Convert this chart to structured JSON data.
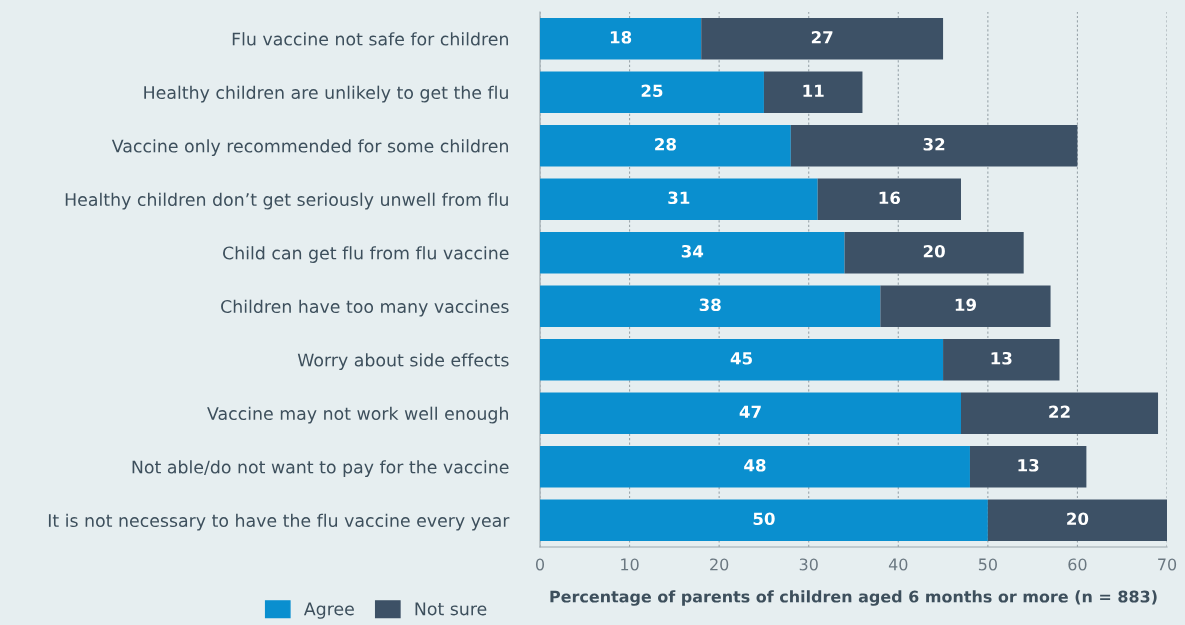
{
  "chart_data": {
    "type": "bar",
    "orientation": "horizontal",
    "stacked": true,
    "categories": [
      "Flu vaccine not safe for children",
      "Healthy children are unlikely to get the flu",
      "Vaccine only recommended for some children",
      "Healthy children don’t get seriously unwell from flu",
      "Child can get flu from flu vaccine",
      "Children have too many vaccines",
      "Worry about side effects",
      "Vaccine may not work well enough",
      "Not able/do not want to pay for the vaccine",
      "It is not necessary to have the flu vaccine every year"
    ],
    "series": [
      {
        "name": "Agree",
        "color": "#0a8fcf",
        "values": [
          18,
          25,
          28,
          31,
          34,
          38,
          45,
          47,
          48,
          50
        ]
      },
      {
        "name": "Not sure",
        "color": "#3d5166",
        "values": [
          27,
          11,
          32,
          16,
          20,
          19,
          13,
          22,
          13,
          20
        ]
      }
    ],
    "xlabel": "Percentage of parents of children aged 6 months or more (n = 883)",
    "xlim": [
      0,
      70
    ],
    "xticks": [
      0,
      10,
      20,
      30,
      40,
      50,
      60,
      70
    ],
    "grid": "x",
    "legend": "bottom left",
    "data_labels": true
  }
}
